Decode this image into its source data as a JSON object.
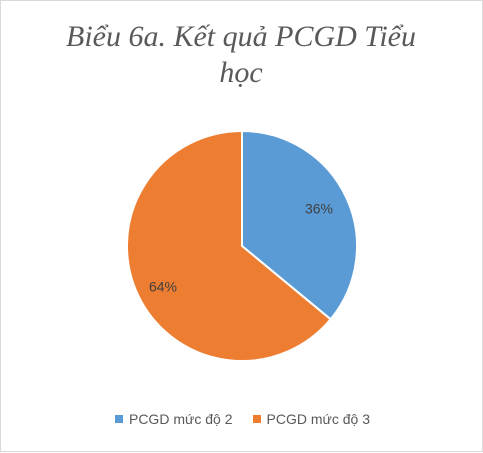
{
  "chart_data": {
    "type": "pie",
    "title": "Biểu 6a. Kết quả PCGD Tiểu học",
    "categories": [
      "PCGD mức độ 2",
      "PCGD mức độ 3"
    ],
    "values": [
      36,
      64
    ],
    "data_labels": [
      "36%",
      "64%"
    ],
    "colors": [
      "#5b9bd5",
      "#ed7d31"
    ],
    "legend_position": "bottom"
  }
}
